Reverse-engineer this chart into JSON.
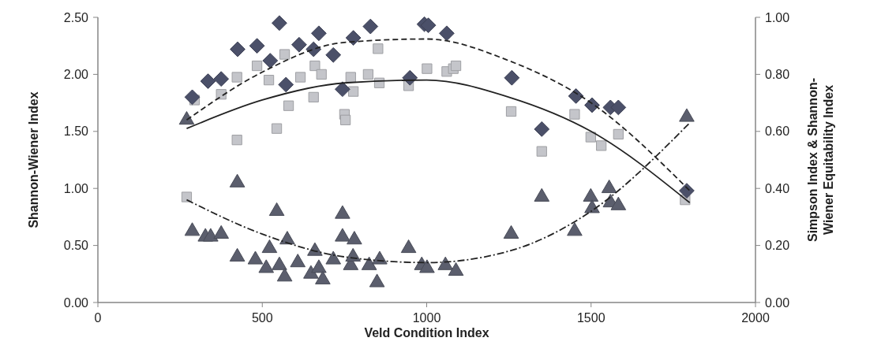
{
  "chart_data": {
    "type": "scatter",
    "xlabel": "Veld Condition Index",
    "ylabel": "Shannon-Wiener Index",
    "y2label": "Simpson Index & Shannon-Wiener Equitability Index",
    "xlim": [
      0,
      2000
    ],
    "xticks": [
      0,
      500,
      1000,
      1500,
      2000
    ],
    "ylim": [
      0,
      2.5
    ],
    "yticks": [
      {
        "value": 0,
        "label": "0.00"
      },
      {
        "value": 0.5,
        "label": "0.50"
      },
      {
        "value": 1,
        "label": "1.00"
      },
      {
        "value": 1.5,
        "label": "1.50"
      },
      {
        "value": 2,
        "label": "2.00"
      },
      {
        "value": 2.5,
        "label": "2.50"
      }
    ],
    "y2lim": [
      0,
      1
    ],
    "y2ticks": [
      {
        "value": 0,
        "label": "0.00"
      },
      {
        "value": 0.2,
        "label": "0.20"
      },
      {
        "value": 0.4,
        "label": "0.40"
      },
      {
        "value": 0.6,
        "label": "0.60"
      },
      {
        "value": 0.8,
        "label": "0.80"
      },
      {
        "value": 1,
        "label": "1.00"
      }
    ],
    "grid": false,
    "series": [
      {
        "marker": "square",
        "color": "#c4c5ca",
        "axis": "y2",
        "x": [
          270,
          294,
          375,
          423,
          423,
          484,
          520,
          544,
          568,
          580,
          616,
          656,
          660,
          680,
          750,
          753,
          769,
          777,
          822,
          852,
          856,
          945,
          1001,
          1061,
          1081,
          1089,
          1257,
          1350,
          1450,
          1499,
          1531,
          1583,
          1786
        ],
        "values": [
          0.37,
          0.71,
          0.73,
          0.79,
          0.57,
          0.83,
          0.78,
          0.61,
          0.87,
          0.69,
          0.79,
          0.72,
          0.83,
          0.8,
          0.66,
          0.64,
          0.79,
          0.74,
          0.8,
          0.89,
          0.77,
          0.76,
          0.82,
          0.81,
          0.82,
          0.83,
          0.67,
          0.53,
          0.66,
          0.58,
          0.55,
          0.59,
          0.36
        ]
      },
      {
        "marker": "diamond",
        "color": "#4b5069",
        "x": [
          287,
          335,
          375,
          425,
          484,
          524,
          552,
          572,
          612,
          656,
          672,
          716,
          744,
          777,
          829,
          949,
          993,
          1005,
          1061,
          1259,
          1350,
          1454,
          1503,
          1559,
          1583,
          1791
        ],
        "values": [
          1.8,
          1.94,
          1.96,
          2.22,
          2.25,
          2.12,
          2.45,
          1.91,
          2.26,
          2.22,
          2.36,
          2.17,
          1.87,
          2.32,
          2.42,
          1.97,
          2.44,
          2.43,
          2.36,
          1.97,
          1.52,
          1.81,
          1.73,
          1.71,
          1.71,
          0.98
        ]
      },
      {
        "marker": "triangle",
        "color": "#5b5e6d",
        "axis": "y2",
        "x": [
          270,
          287,
          327,
          343,
          375,
          424,
          424,
          479,
          512,
          522,
          544,
          552,
          568,
          576,
          608,
          648,
          660,
          672,
          684,
          716,
          744,
          744,
          769,
          776,
          780,
          825,
          849,
          857,
          945,
          985,
          1001,
          1057,
          1089,
          1257,
          1350,
          1450,
          1499,
          1503,
          1555,
          1559,
          1583,
          1791
        ],
        "values": [
          0.64,
          0.25,
          0.23,
          0.23,
          0.24,
          0.42,
          0.16,
          0.15,
          0.12,
          0.19,
          0.32,
          0.13,
          0.09,
          0.22,
          0.14,
          0.1,
          0.18,
          0.12,
          0.08,
          0.15,
          0.31,
          0.23,
          0.13,
          0.16,
          0.22,
          0.13,
          0.07,
          0.15,
          0.19,
          0.13,
          0.12,
          0.13,
          0.11,
          0.24,
          0.37,
          0.25,
          0.37,
          0.33,
          0.4,
          0.35,
          0.34,
          0.65
        ]
      },
      {
        "type": "line",
        "marker": "none",
        "line_style": "dashed",
        "color": "#222222",
        "x": [
          270,
          500,
          750,
          1000,
          1250,
          1500,
          1800
        ],
        "values": [
          1.6,
          2.02,
          2.28,
          2.31,
          2.12,
          1.75,
          0.98
        ]
      },
      {
        "type": "line",
        "marker": "none",
        "line_style": "solid",
        "color": "#222222",
        "axis": "y2",
        "x": [
          270,
          500,
          750,
          1000,
          1250,
          1500,
          1800
        ],
        "values": [
          0.61,
          0.71,
          0.77,
          0.78,
          0.72,
          0.6,
          0.35
        ]
      },
      {
        "type": "line",
        "marker": "none",
        "line_style": "dotted",
        "color": "#222222",
        "axis": "y2",
        "x": [
          270,
          500,
          750,
          1000,
          1250,
          1500,
          1800
        ],
        "values": [
          0.36,
          0.24,
          0.16,
          0.14,
          0.18,
          0.32,
          0.63
        ]
      }
    ]
  }
}
